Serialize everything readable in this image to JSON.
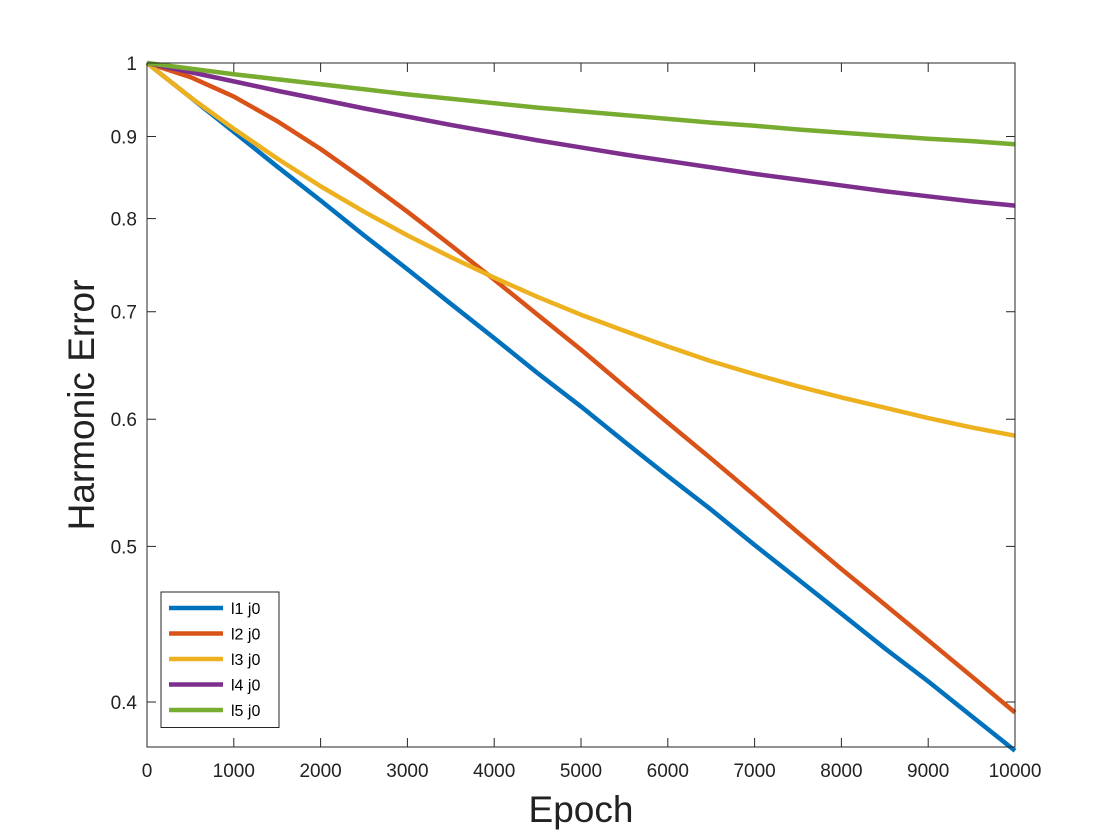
{
  "chart_data": {
    "type": "line",
    "title": "",
    "xlabel": "Epoch",
    "ylabel": "Harmonic Error",
    "xlim": [
      0,
      10000
    ],
    "ylim": [
      0.375,
      1.0
    ],
    "yscale": "log",
    "grid": false,
    "legend_position": "bottom-left",
    "xticks": [
      "0",
      "1000",
      "2000",
      "3000",
      "4000",
      "5000",
      "6000",
      "7000",
      "8000",
      "9000",
      "10000"
    ],
    "yticks": [
      "0.4",
      "0.5",
      "0.6",
      "0.7",
      "0.8",
      "0.9",
      "1"
    ],
    "x": [
      0,
      500,
      1000,
      1500,
      2000,
      2500,
      3000,
      3500,
      4000,
      4500,
      5000,
      5500,
      6000,
      6500,
      7000,
      7500,
      8000,
      8500,
      9000,
      9500,
      10000
    ],
    "series": [
      {
        "name": "l1 j0",
        "color": "#0072BD",
        "values": [
          1.0,
          0.952,
          0.906,
          0.862,
          0.821,
          0.781,
          0.744,
          0.708,
          0.674,
          0.641,
          0.611,
          0.581,
          0.553,
          0.527,
          0.501,
          0.477,
          0.454,
          0.432,
          0.412,
          0.392,
          0.373
        ]
      },
      {
        "name": "l2 j0",
        "color": "#D95319",
        "values": [
          1.0,
          0.98,
          0.953,
          0.92,
          0.884,
          0.846,
          0.808,
          0.77,
          0.733,
          0.697,
          0.663,
          0.629,
          0.597,
          0.567,
          0.538,
          0.51,
          0.484,
          0.46,
          0.437,
          0.415,
          0.394
        ]
      },
      {
        "name": "l3 j0",
        "color": "#EDB120",
        "values": [
          1.0,
          0.952,
          0.91,
          0.872,
          0.838,
          0.808,
          0.781,
          0.757,
          0.735,
          0.715,
          0.697,
          0.681,
          0.666,
          0.652,
          0.64,
          0.629,
          0.619,
          0.61,
          0.601,
          0.593,
          0.586
        ]
      },
      {
        "name": "l4 j0",
        "color": "#7E2F8E",
        "values": [
          1.0,
          0.987,
          0.974,
          0.961,
          0.949,
          0.937,
          0.926,
          0.915,
          0.905,
          0.895,
          0.886,
          0.877,
          0.869,
          0.861,
          0.853,
          0.846,
          0.839,
          0.832,
          0.826,
          0.82,
          0.815
        ]
      },
      {
        "name": "l5 j0",
        "color": "#77AC30",
        "values": [
          1.0,
          0.992,
          0.984,
          0.977,
          0.97,
          0.963,
          0.956,
          0.95,
          0.944,
          0.938,
          0.933,
          0.928,
          0.923,
          0.918,
          0.914,
          0.909,
          0.905,
          0.901,
          0.897,
          0.894,
          0.89
        ]
      }
    ]
  }
}
